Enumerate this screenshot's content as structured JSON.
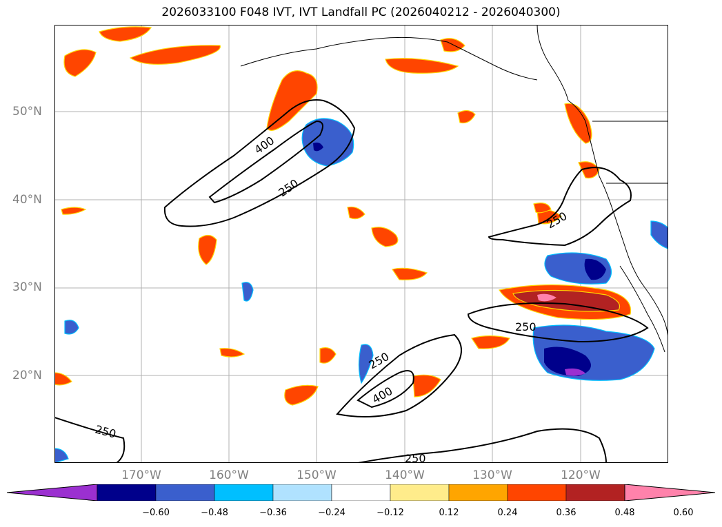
{
  "title": "2026033100 F048 IVT, IVT Landfall PC (2026040212 - 2026040300)",
  "lat_labels": [
    "50°N",
    "40°N",
    "30°N",
    "20°N"
  ],
  "lon_labels": [
    "170°W",
    "160°W",
    "150°W",
    "140°W",
    "130°W",
    "120°W"
  ],
  "contour_labels": [
    "400",
    "250",
    "250",
    "250",
    "250",
    "400",
    "250",
    "250"
  ],
  "colorbar": {
    "ticks": [
      "−0.60",
      "−0.48",
      "−0.36",
      "−0.24",
      "−0.12",
      "0.12",
      "0.24",
      "0.36",
      "0.48",
      "0.60"
    ],
    "colors": [
      "#9b30d0",
      "#00008b",
      "#3a5fcd",
      "#00bfff",
      "#b0e2ff",
      "#ffffff",
      "#ffec8b",
      "#ffa500",
      "#ff4500",
      "#b22222",
      "#ff82ab"
    ]
  }
}
